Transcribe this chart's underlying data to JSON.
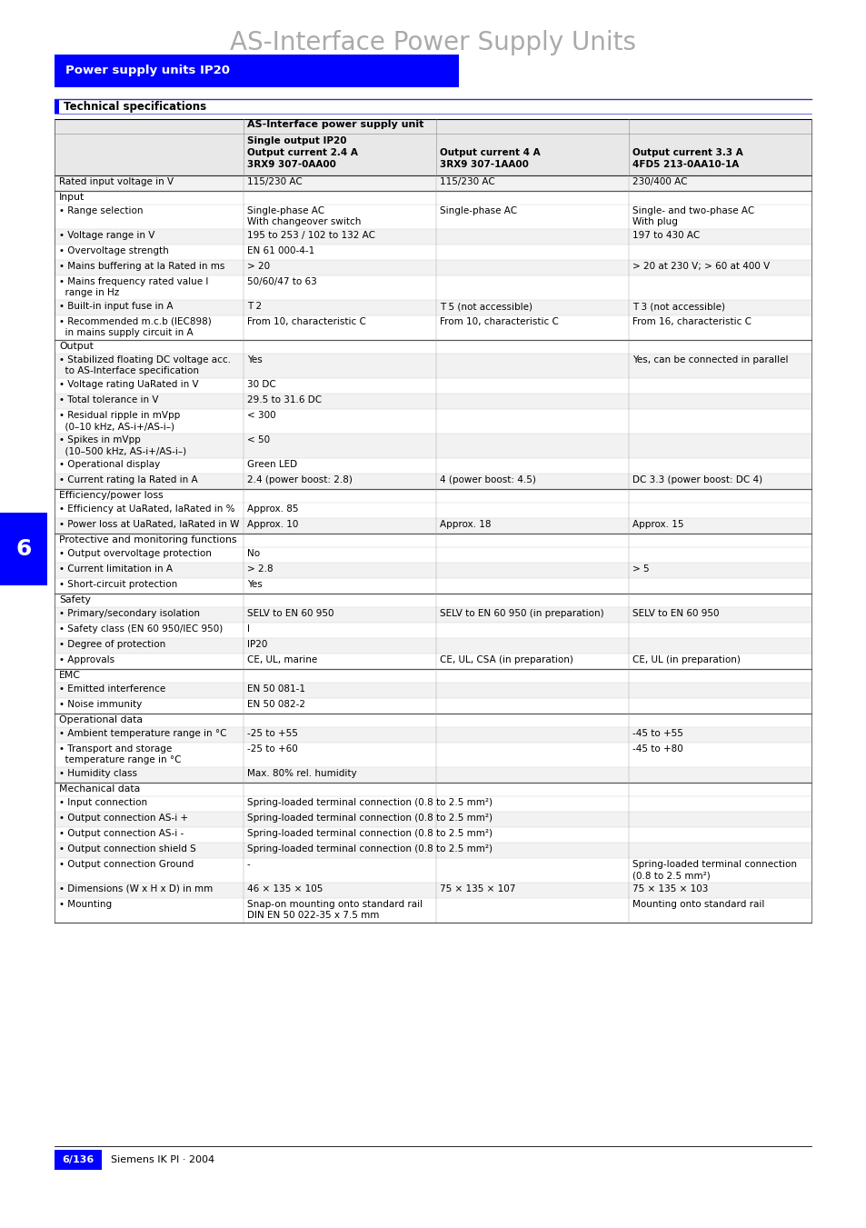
{
  "title": "AS-Interface Power Supply Units",
  "section_title": "Power supply units IP20",
  "subsection_title": "Technical specifications",
  "table_header_main": "AS-Interface power supply unit",
  "col1_header": [
    "Single output IP20",
    "Output current 2.4 A",
    "3RX9 307-0AA00"
  ],
  "col2_header": [
    "Output current 4 A",
    "3RX9 307-1AA00"
  ],
  "col3_header": [
    "Output current 3.3 A",
    "4FD5 213-0AA10-1A"
  ],
  "rows": [
    {
      "label": "Rated input voltage in V",
      "c1": "115/230 AC",
      "c2": "115/230 AC",
      "c3": "230/400 AC",
      "category": false
    },
    {
      "label": "Input",
      "c1": "",
      "c2": "",
      "c3": "",
      "category": true
    },
    {
      "label": "• Range selection",
      "c1": "Single-phase AC\nWith changeover switch",
      "c2": "Single-phase AC",
      "c3": "Single- and two-phase AC\nWith plug",
      "category": false
    },
    {
      "label": "• Voltage range in V",
      "c1": "195 to 253 / 102 to 132 AC",
      "c2": "",
      "c3": "197 to 430 AC",
      "category": false
    },
    {
      "label": "• Overvoltage strength",
      "c1": "EN 61 000-4-1",
      "c2": "",
      "c3": "",
      "category": false
    },
    {
      "label": "• Mains buffering at Ia Rated in ms",
      "c1": "> 20",
      "c2": "",
      "c3": "> 20 at 230 V; > 60 at 400 V",
      "category": false
    },
    {
      "label": "• Mains frequency rated value I\n  range in Hz",
      "c1": "50/60/47 to 63",
      "c2": "",
      "c3": "",
      "category": false
    },
    {
      "label": "• Built-in input fuse in A",
      "c1": "T 2",
      "c2": "T 5 (not accessible)",
      "c3": "T 3 (not accessible)",
      "category": false
    },
    {
      "label": "• Recommended m.c.b (IEC898)\n  in mains supply circuit in A",
      "c1": "From 10, characteristic C",
      "c2": "From 10, characteristic C",
      "c3": "From 16, characteristic C",
      "category": false
    },
    {
      "label": "Output",
      "c1": "",
      "c2": "",
      "c3": "",
      "category": true
    },
    {
      "label": "• Stabilized floating DC voltage acc.\n  to AS-Interface specification",
      "c1": "Yes",
      "c2": "",
      "c3": "Yes, can be connected in parallel",
      "category": false
    },
    {
      "label": "• Voltage rating UaRated in V",
      "c1": "30 DC",
      "c2": "",
      "c3": "",
      "category": false
    },
    {
      "label": "• Total tolerance in V",
      "c1": "29.5 to 31.6 DC",
      "c2": "",
      "c3": "",
      "category": false
    },
    {
      "label": "• Residual ripple in mVpp\n  (0–10 kHz, AS-i+/AS-i–)",
      "c1": "< 300",
      "c2": "",
      "c3": "",
      "category": false
    },
    {
      "label": "• Spikes in mVpp\n  (10–500 kHz, AS-i+/AS-i–)",
      "c1": "< 50",
      "c2": "",
      "c3": "",
      "category": false
    },
    {
      "label": "• Operational display",
      "c1": "Green LED",
      "c2": "",
      "c3": "",
      "category": false
    },
    {
      "label": "• Current rating Ia Rated in A",
      "c1": "2.4 (power boost: 2.8)",
      "c2": "4 (power boost: 4.5)",
      "c3": "DC 3.3 (power boost: DC 4)",
      "category": false
    },
    {
      "label": "Efficiency/power loss",
      "c1": "",
      "c2": "",
      "c3": "",
      "category": true
    },
    {
      "label": "• Efficiency at UaRated, IaRated in %",
      "c1": "Approx. 85",
      "c2": "",
      "c3": "",
      "category": false
    },
    {
      "label": "• Power loss at UaRated, IaRated in W",
      "c1": "Approx. 10",
      "c2": "Approx. 18",
      "c3": "Approx. 15",
      "category": false
    },
    {
      "label": "Protective and monitoring functions",
      "c1": "",
      "c2": "",
      "c3": "",
      "category": true
    },
    {
      "label": "• Output overvoltage protection",
      "c1": "No",
      "c2": "",
      "c3": "",
      "category": false
    },
    {
      "label": "• Current limitation in A",
      "c1": "> 2.8",
      "c2": "",
      "c3": "> 5",
      "category": false
    },
    {
      "label": "• Short-circuit protection",
      "c1": "Yes",
      "c2": "",
      "c3": "",
      "category": false
    },
    {
      "label": "Safety",
      "c1": "",
      "c2": "",
      "c3": "",
      "category": true
    },
    {
      "label": "• Primary/secondary isolation",
      "c1": "SELV to EN 60 950",
      "c2": "SELV to EN 60 950 (in preparation)",
      "c3": "SELV to EN 60 950",
      "category": false
    },
    {
      "label": "• Safety class (EN 60 950/IEC 950)",
      "c1": "I",
      "c2": "",
      "c3": "",
      "category": false
    },
    {
      "label": "• Degree of protection",
      "c1": "IP20",
      "c2": "",
      "c3": "",
      "category": false
    },
    {
      "label": "• Approvals",
      "c1": "CE, UL, marine",
      "c2": "CE, UL, CSA (in preparation)",
      "c3": "CE, UL (in preparation)",
      "category": false
    },
    {
      "label": "EMC",
      "c1": "",
      "c2": "",
      "c3": "",
      "category": true
    },
    {
      "label": "• Emitted interference",
      "c1": "EN 50 081-1",
      "c2": "",
      "c3": "",
      "category": false
    },
    {
      "label": "• Noise immunity",
      "c1": "EN 50 082-2",
      "c2": "",
      "c3": "",
      "category": false
    },
    {
      "label": "Operational data",
      "c1": "",
      "c2": "",
      "c3": "",
      "category": true
    },
    {
      "label": "• Ambient temperature range in °C",
      "c1": "-25 to +55",
      "c2": "",
      "c3": "-45 to +55",
      "category": false
    },
    {
      "label": "• Transport and storage\n  temperature range in °C",
      "c1": "-25 to +60",
      "c2": "",
      "c3": "-45 to +80",
      "category": false
    },
    {
      "label": "• Humidity class",
      "c1": "Max. 80% rel. humidity",
      "c2": "",
      "c3": "",
      "category": false
    },
    {
      "label": "Mechanical data",
      "c1": "",
      "c2": "",
      "c3": "",
      "category": true
    },
    {
      "label": "• Input connection",
      "c1": "Spring-loaded terminal connection (0.8 to 2.5 mm²)",
      "c2": "",
      "c3": "",
      "category": false
    },
    {
      "label": "• Output connection AS-i +",
      "c1": "Spring-loaded terminal connection (0.8 to 2.5 mm²)",
      "c2": "",
      "c3": "",
      "category": false
    },
    {
      "label": "• Output connection AS-i -",
      "c1": "Spring-loaded terminal connection (0.8 to 2.5 mm²)",
      "c2": "",
      "c3": "",
      "category": false
    },
    {
      "label": "• Output connection shield S",
      "c1": "Spring-loaded terminal connection (0.8 to 2.5 mm²)",
      "c2": "",
      "c3": "",
      "category": false
    },
    {
      "label": "• Output connection Ground",
      "c1": "-",
      "c2": "",
      "c3": "Spring-loaded terminal connection\n(0.8 to 2.5 mm²)",
      "category": false
    },
    {
      "label": "• Dimensions (W x H x D) in mm",
      "c1": "46 × 135 × 105",
      "c2": "75 × 135 × 107",
      "c3": "75 × 135 × 103",
      "category": false
    },
    {
      "label": "• Mounting",
      "c1": "Snap-on mounting onto standard rail\nDIN EN 50 022-35 x 7.5 mm",
      "c2": "",
      "c3": "Mounting onto standard rail",
      "category": false
    }
  ],
  "footer_left": "6/136",
  "footer_right": "Siemens IK PI · 2004",
  "section_number": "6",
  "bg_color": "#ffffff",
  "title_color": "#aaaaaa",
  "section_bg": "#0000ff",
  "section_text_color": "#ffffff",
  "row_bg": "#ffffff",
  "text_color": "#000000",
  "side_bar_color": "#0000ff"
}
